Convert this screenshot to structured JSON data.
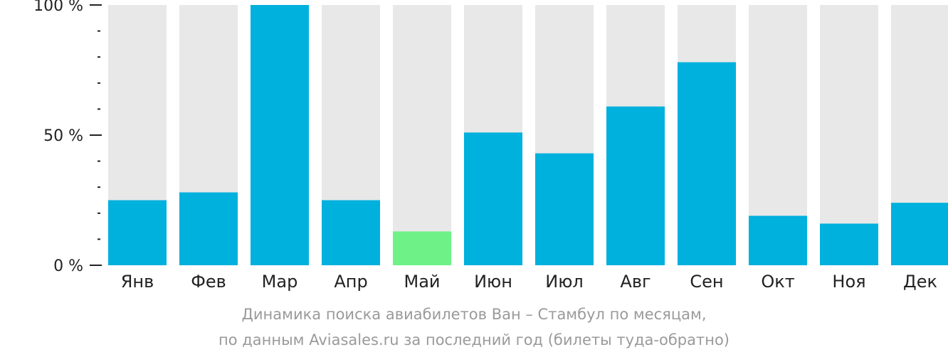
{
  "chart_data": {
    "type": "bar",
    "categories": [
      "Янв",
      "Фев",
      "Мар",
      "Апр",
      "Май",
      "Июн",
      "Июл",
      "Авг",
      "Сен",
      "Окт",
      "Ноя",
      "Дек"
    ],
    "values": [
      25,
      28,
      100,
      25,
      13,
      51,
      43,
      61,
      78,
      19,
      16,
      24
    ],
    "highlight_category": "Май",
    "ylim": [
      0,
      100
    ],
    "y_ticks": [
      {
        "value": 0,
        "label": "0 %"
      },
      {
        "value": 50,
        "label": "50 %"
      },
      {
        "value": 100,
        "label": "100 %"
      }
    ],
    "y_minor_step": 10,
    "title": "",
    "xlabel": "",
    "ylabel": "",
    "colors": {
      "bar": "#00b0dd",
      "highlight": "#6ef288",
      "background_bar": "#e8e8e8",
      "axis": "#222222"
    },
    "grid": false,
    "legend": "none"
  },
  "caption": {
    "line1": "Динамика поиска авиабилетов Ван – Стамбул по месяцам,",
    "line2": "по данным Aviasales.ru за последний год (билеты туда-обратно)"
  }
}
